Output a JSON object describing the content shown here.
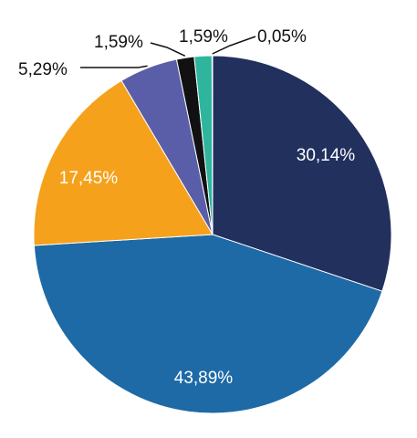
{
  "chart_data": {
    "type": "pie",
    "title": "",
    "start_angle_deg": 0,
    "direction": "clockwise",
    "slices": [
      {
        "value": 30.14,
        "label": "30,14%",
        "color": "#22305E",
        "label_position": "inside"
      },
      {
        "value": 43.89,
        "label": "43,89%",
        "color": "#1D6AA6",
        "label_position": "inside"
      },
      {
        "value": 17.45,
        "label": "17,45%",
        "color": "#F5A11C",
        "label_position": "inside"
      },
      {
        "value": 5.29,
        "label": "5,29%",
        "color": "#5A5EA8",
        "label_position": "outside"
      },
      {
        "value": 1.59,
        "label": "1,59%",
        "color": "#111111",
        "label_position": "outside"
      },
      {
        "value": 1.59,
        "label": "1,59%",
        "color": "#2FB59E",
        "label_position": "outside"
      },
      {
        "value": 0.05,
        "label": "0,05%",
        "color": "#E9E9E9",
        "label_position": "outside"
      }
    ]
  }
}
